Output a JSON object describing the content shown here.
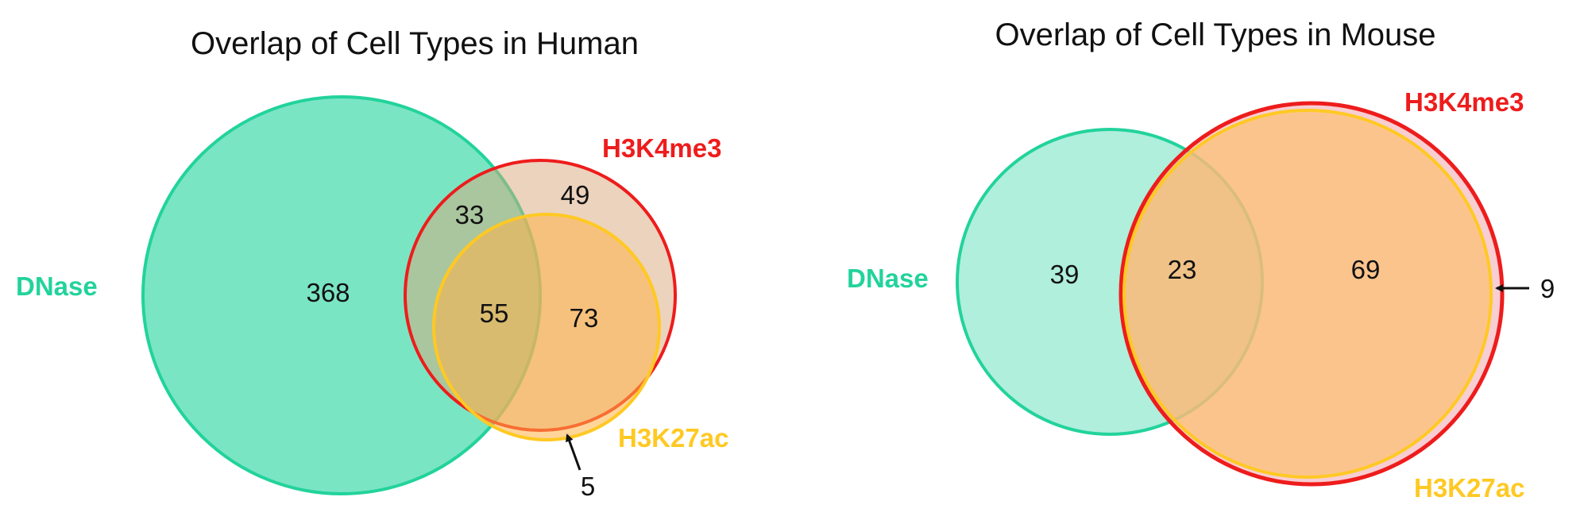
{
  "colors": {
    "dnase": "#22D39B",
    "h3k4me3": "#EE1C1C",
    "h3k27ac": "#FFC923",
    "text": "#111111"
  },
  "human": {
    "title": "Overlap of Cell Types in Human",
    "labels": {
      "dnase": "DNase",
      "h3k4me3": "H3K4me3",
      "h3k27ac": "H3K27ac"
    },
    "regions": {
      "dnase_only": "368",
      "dnase_h3k4me3": "33",
      "h3k4me3_only": "49",
      "all_three": "55",
      "h3k4me3_h3k27ac": "73",
      "h3k27ac_only": "5"
    }
  },
  "mouse": {
    "title": "Overlap of Cell Types in Mouse",
    "labels": {
      "dnase": "DNase",
      "h3k4me3": "H3K4me3",
      "h3k27ac": "H3K27ac"
    },
    "regions": {
      "dnase_only": "39",
      "dnase_h3k4me3_h3k27ac": "23",
      "h3k4me3_h3k27ac": "69",
      "h3k4me3_only": "9"
    }
  }
}
